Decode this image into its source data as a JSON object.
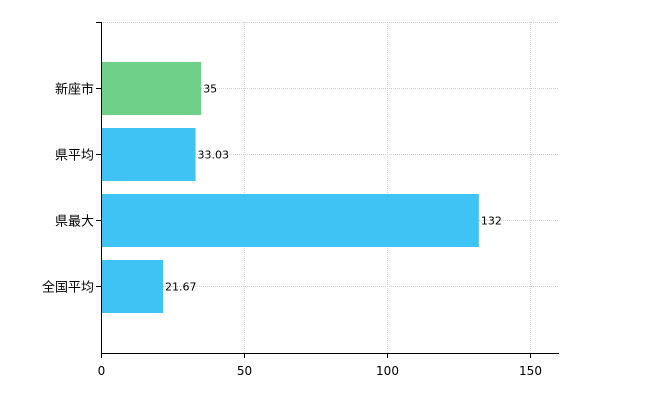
{
  "chart_data": {
    "type": "bar",
    "orientation": "horizontal",
    "categories": [
      "新座市",
      "県平均",
      "県最大",
      "全国平均"
    ],
    "values": [
      35,
      33.03,
      132,
      21.67
    ],
    "value_labels": [
      "35",
      "33.03",
      "132",
      "21.67"
    ],
    "bar_colors": [
      "#6fd08a",
      "#3ec3f4",
      "#3ec3f4",
      "#3ec3f4"
    ],
    "title": "",
    "xlabel": "",
    "ylabel": "",
    "xlim": [
      0,
      160
    ],
    "x_ticks": [
      0,
      50,
      100,
      150
    ],
    "x_tick_labels": [
      "0",
      "50",
      "100",
      "150"
    ],
    "grid": true,
    "legend": "none"
  }
}
